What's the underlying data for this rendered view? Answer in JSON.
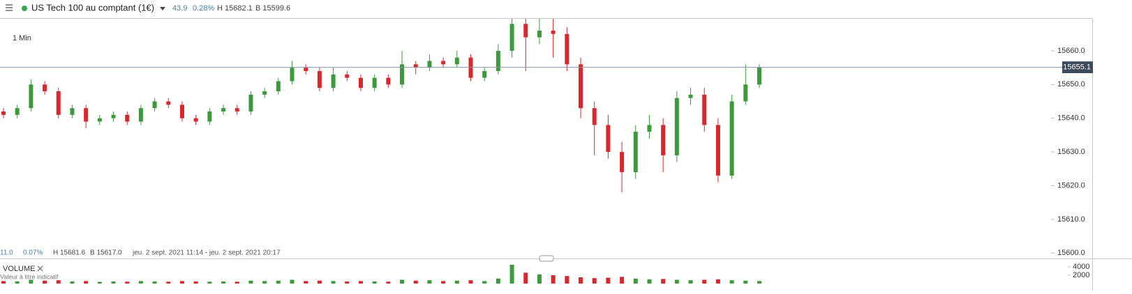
{
  "header": {
    "instrument": "US Tech 100 au comptant (1€)",
    "change": "43.9",
    "change_pct": "0.28%",
    "high": "H 15682.1",
    "low": "B 15599.6"
  },
  "chart_data": {
    "type": "candlestick",
    "interval": "1 Min",
    "open": [
      15642,
      15641,
      15643,
      15650,
      15648,
      15641,
      15643,
      15639,
      15640,
      15641,
      15639,
      15643,
      15645,
      15644,
      15640,
      15639,
      15642,
      15643,
      15642,
      15647,
      15648,
      15651,
      15655,
      15654,
      15649,
      15653,
      15652,
      15649,
      15652,
      15650,
      15656,
      15655,
      15657,
      15656,
      15658,
      15652,
      15654,
      15660,
      15668,
      15664,
      15666,
      15665,
      15656,
      15643,
      15638,
      15630,
      15624,
      15636,
      15638,
      15629,
      15646,
      15647,
      15638,
      15623,
      15645,
      15650
    ],
    "high": [
      15643,
      15644,
      15651.5,
      15651,
      15649,
      15644,
      15644,
      15641,
      15642,
      15642,
      15644,
      15646,
      15646,
      15645,
      15641,
      15643,
      15644,
      15644,
      15648,
      15649,
      15652,
      15657,
      15656,
      15655,
      15655,
      15654,
      15653,
      15653,
      15653,
      15660,
      15657,
      15659,
      15658,
      15660,
      15659,
      15655,
      15662,
      15669.5,
      15669.5,
      15669.5,
      15669.5,
      15667,
      15658,
      15645,
      15641,
      15633,
      15638,
      15641,
      15640,
      15648,
      15649,
      15649,
      15640,
      15647,
      15656,
      15656
    ],
    "low": [
      15640,
      15640,
      15642,
      15647,
      15640,
      15640,
      15637,
      15638,
      15639,
      15638,
      15638,
      15642,
      15643,
      15639,
      15638,
      15638,
      15641,
      15641,
      15641,
      15646,
      15647,
      15650,
      15653,
      15648,
      15648,
      15651,
      15648,
      15648,
      15649,
      15649,
      15653,
      15654,
      15655,
      15655,
      15651,
      15651,
      15653,
      15658,
      15654,
      15662,
      15658,
      15654,
      15640,
      15629,
      15628,
      15618,
      15622,
      15634,
      15624,
      15627,
      15644,
      15636,
      15621,
      15622,
      15644,
      15649
    ],
    "close": [
      15641,
      15643,
      15650,
      15648,
      15641,
      15643,
      15639,
      15640,
      15641,
      15639,
      15643,
      15645,
      15644,
      15640,
      15639,
      15642,
      15643,
      15642,
      15647,
      15648,
      15651,
      15655,
      15654,
      15649,
      15653,
      15652,
      15649,
      15652,
      15650,
      15656,
      15655,
      15657,
      15656,
      15658,
      15652,
      15654,
      15660,
      15668,
      15664,
      15666,
      15665,
      15656,
      15643,
      15638,
      15630,
      15624,
      15636,
      15638,
      15629,
      15646,
      15647,
      15638,
      15623,
      15645,
      15650,
      15655.1
    ],
    "up_color": "#3c9a3c",
    "down_color": "#d8272d",
    "ylim": [
      15598.6,
      15669.5
    ],
    "yticks": [
      {
        "value": 15600,
        "label": "15600.0"
      },
      {
        "value": 15610,
        "label": "15610.0"
      },
      {
        "value": 15620,
        "label": "15620.0"
      },
      {
        "value": 15630,
        "label": "15630.0"
      },
      {
        "value": 15640,
        "label": "15640.0"
      },
      {
        "value": 15650,
        "label": "15650.0"
      },
      {
        "value": 15660,
        "label": "15660.0"
      }
    ],
    "last_price": 15655.1,
    "info": {
      "change": "11.0",
      "change_pct": "0.07%",
      "high": "H 15681.6",
      "low": "B 15617.0",
      "range": "jeu. 2 sept. 2021 11:14 - jeu. 2 sept. 2021 20:17"
    },
    "volume": {
      "title": "VOLUME",
      "note": "Valeur à titre indicatif",
      "values": [
        600,
        500,
        900,
        700,
        800,
        500,
        600,
        400,
        500,
        450,
        600,
        500,
        450,
        600,
        500,
        450,
        500,
        450,
        700,
        600,
        700,
        900,
        600,
        700,
        600,
        500,
        600,
        500,
        450,
        900,
        700,
        800,
        600,
        700,
        800,
        600,
        1200,
        4500,
        2600,
        2200,
        2000,
        1800,
        1500,
        1300,
        1400,
        1600,
        1200,
        1000,
        1100,
        900,
        800,
        900,
        1000,
        800,
        700,
        600
      ],
      "ylim": [
        0,
        6000
      ],
      "yticks": [
        2000,
        4000
      ]
    }
  }
}
